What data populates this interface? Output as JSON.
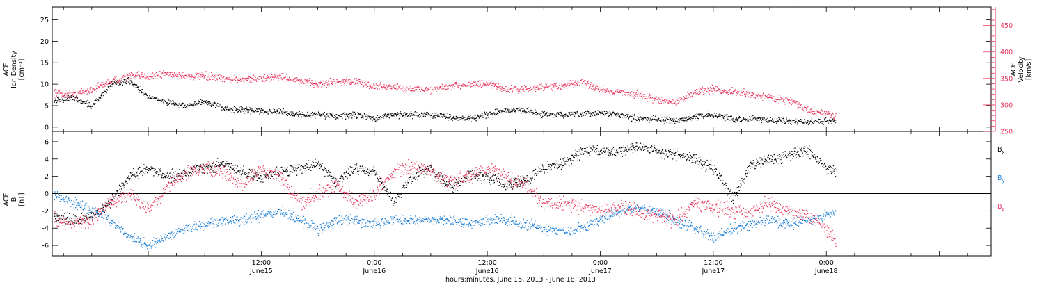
{
  "colors": {
    "density": "#000000",
    "velocity": "#e8385f",
    "bx": "#000000",
    "by": "#1b7fd8",
    "bz": "#e8385f",
    "axis": "#000000"
  },
  "xaxis": {
    "label": "hours:minutes, June 15, 2013 - June 18, 2013",
    "range_hours": [
      -10.2,
      89.5
    ],
    "ticks": [
      {
        "hour": 12,
        "time": "12:00",
        "date": "June15"
      },
      {
        "hour": 24,
        "time": "0:00",
        "date": "June16"
      },
      {
        "hour": 36,
        "time": "12:00",
        "date": "June16"
      },
      {
        "hour": 48,
        "time": "0:00",
        "date": "June17"
      },
      {
        "hour": 60,
        "time": "12:00",
        "date": "June17"
      },
      {
        "hour": 72,
        "time": "0:00",
        "date": "June18"
      }
    ]
  },
  "chart_data": [
    {
      "type": "scatter",
      "panel": "plasma",
      "ylabel_left": [
        "ACE",
        "Ion Density",
        "[cm⁻³]"
      ],
      "ylabel_right": [
        "ACE",
        "Velocity",
        "[km/s]"
      ],
      "ylim_left": [
        -1,
        28
      ],
      "ylim_right": [
        250,
        485
      ],
      "yticks_left": [
        "0",
        "5",
        "10",
        "15",
        "20",
        "25"
      ],
      "yticks_right": [
        "250",
        "300",
        "350",
        "400",
        "450"
      ],
      "series": [
        {
          "axis": "left",
          "hours": [
            -10,
            -8,
            -6,
            -4,
            -2,
            0,
            2,
            4,
            6,
            8,
            10,
            12,
            14,
            16,
            18,
            20,
            22,
            24,
            26,
            28,
            30,
            32,
            34,
            36,
            38,
            40,
            42,
            44,
            46,
            48,
            50,
            52,
            54,
            56,
            58,
            60,
            62,
            64,
            66,
            68,
            70,
            72,
            73
          ],
          "values": [
            6,
            7,
            5,
            10,
            11,
            7,
            6,
            5,
            6,
            4.5,
            4,
            4,
            3.5,
            3,
            3,
            2.5,
            3,
            2,
            3,
            3,
            3,
            2.5,
            2,
            3,
            4,
            4,
            3,
            3,
            3,
            3.5,
            3,
            2,
            2,
            1.5,
            2.5,
            3,
            2,
            2,
            1.8,
            1.5,
            1.2,
            1.5,
            1.5
          ]
        },
        {
          "axis": "right",
          "hours": [
            -10,
            -8,
            -6,
            -4,
            -2,
            0,
            2,
            4,
            6,
            8,
            10,
            12,
            14,
            16,
            18,
            20,
            22,
            24,
            26,
            28,
            30,
            32,
            34,
            36,
            38,
            40,
            42,
            44,
            46,
            48,
            50,
            52,
            54,
            56,
            58,
            60,
            62,
            64,
            66,
            68,
            70,
            72,
            73
          ],
          "values": [
            325,
            320,
            330,
            345,
            355,
            355,
            360,
            355,
            355,
            350,
            350,
            350,
            355,
            345,
            340,
            345,
            345,
            335,
            335,
            330,
            330,
            335,
            340,
            340,
            330,
            330,
            335,
            335,
            345,
            330,
            325,
            320,
            310,
            305,
            325,
            330,
            325,
            320,
            315,
            310,
            290,
            285,
            280
          ]
        }
      ]
    },
    {
      "type": "scatter",
      "panel": "magnetic",
      "ylabel_left": [
        "ACE",
        "B",
        "[nT]"
      ],
      "ylim": [
        -7.2,
        7.2
      ],
      "yticks": [
        "-6",
        "-4",
        "-2",
        "0",
        "2",
        "4",
        "6"
      ],
      "series": [
        {
          "name": "Bx",
          "hours": [
            -10,
            -8,
            -6,
            -4,
            -2,
            0,
            2,
            4,
            6,
            8,
            10,
            12,
            14,
            16,
            18,
            20,
            22,
            24,
            26,
            28,
            30,
            32,
            34,
            36,
            38,
            40,
            42,
            44,
            46,
            48,
            50,
            52,
            54,
            56,
            58,
            60,
            62,
            64,
            66,
            68,
            70,
            72,
            73
          ],
          "values": [
            -2.5,
            -3,
            -2.5,
            -1,
            2,
            3,
            2,
            2.5,
            3,
            3.5,
            2.5,
            2,
            2.5,
            3,
            3.5,
            1.5,
            3,
            2.5,
            -1,
            2,
            3,
            0.5,
            2,
            2,
            1,
            1.5,
            3,
            3.5,
            5,
            5,
            5,
            5.5,
            5,
            4.5,
            4,
            3,
            -0.5,
            3.5,
            4,
            4.5,
            5,
            3,
            2.5
          ]
        },
        {
          "name": "By",
          "hours": [
            -10,
            -8,
            -6,
            -4,
            -2,
            0,
            2,
            4,
            6,
            8,
            10,
            12,
            14,
            16,
            18,
            20,
            22,
            24,
            26,
            28,
            30,
            32,
            34,
            36,
            38,
            40,
            42,
            44,
            46,
            48,
            50,
            52,
            54,
            56,
            58,
            60,
            62,
            64,
            66,
            68,
            70,
            72,
            73
          ],
          "values": [
            0,
            -1,
            -2,
            -3,
            -5,
            -6,
            -5,
            -4,
            -3.5,
            -3,
            -3,
            -2.5,
            -2,
            -3,
            -4,
            -3,
            -3,
            -3.5,
            -3,
            -3,
            -3,
            -3,
            -3.5,
            -3,
            -3,
            -3.5,
            -4,
            -4.5,
            -4,
            -3,
            -2,
            -1.5,
            -2,
            -3,
            -4,
            -5,
            -4,
            -3.5,
            -3,
            -3.5,
            -3,
            -2.5,
            -2
          ]
        },
        {
          "name": "Bz",
          "hours": [
            -10,
            -8,
            -6,
            -4,
            -2,
            0,
            2,
            4,
            6,
            8,
            10,
            12,
            14,
            16,
            18,
            20,
            22,
            24,
            26,
            28,
            30,
            32,
            34,
            36,
            38,
            40,
            42,
            44,
            46,
            48,
            50,
            52,
            54,
            56,
            58,
            60,
            62,
            64,
            66,
            68,
            70,
            72,
            73
          ],
          "values": [
            -3,
            -3.5,
            -3,
            -1,
            0,
            -2,
            1,
            2.5,
            3,
            2.5,
            1,
            3,
            2,
            -1,
            0,
            1,
            -1,
            0,
            2.5,
            3,
            2.5,
            1.5,
            2,
            3,
            2,
            1,
            -1,
            -1,
            -1.5,
            -2,
            -1.5,
            -2,
            -2.5,
            -3,
            -1,
            -1.5,
            -2,
            -2,
            -1,
            -2,
            -2.5,
            -4,
            -5.5
          ]
        }
      ],
      "legend": [
        "Bx",
        "By",
        "Bz"
      ]
    }
  ]
}
